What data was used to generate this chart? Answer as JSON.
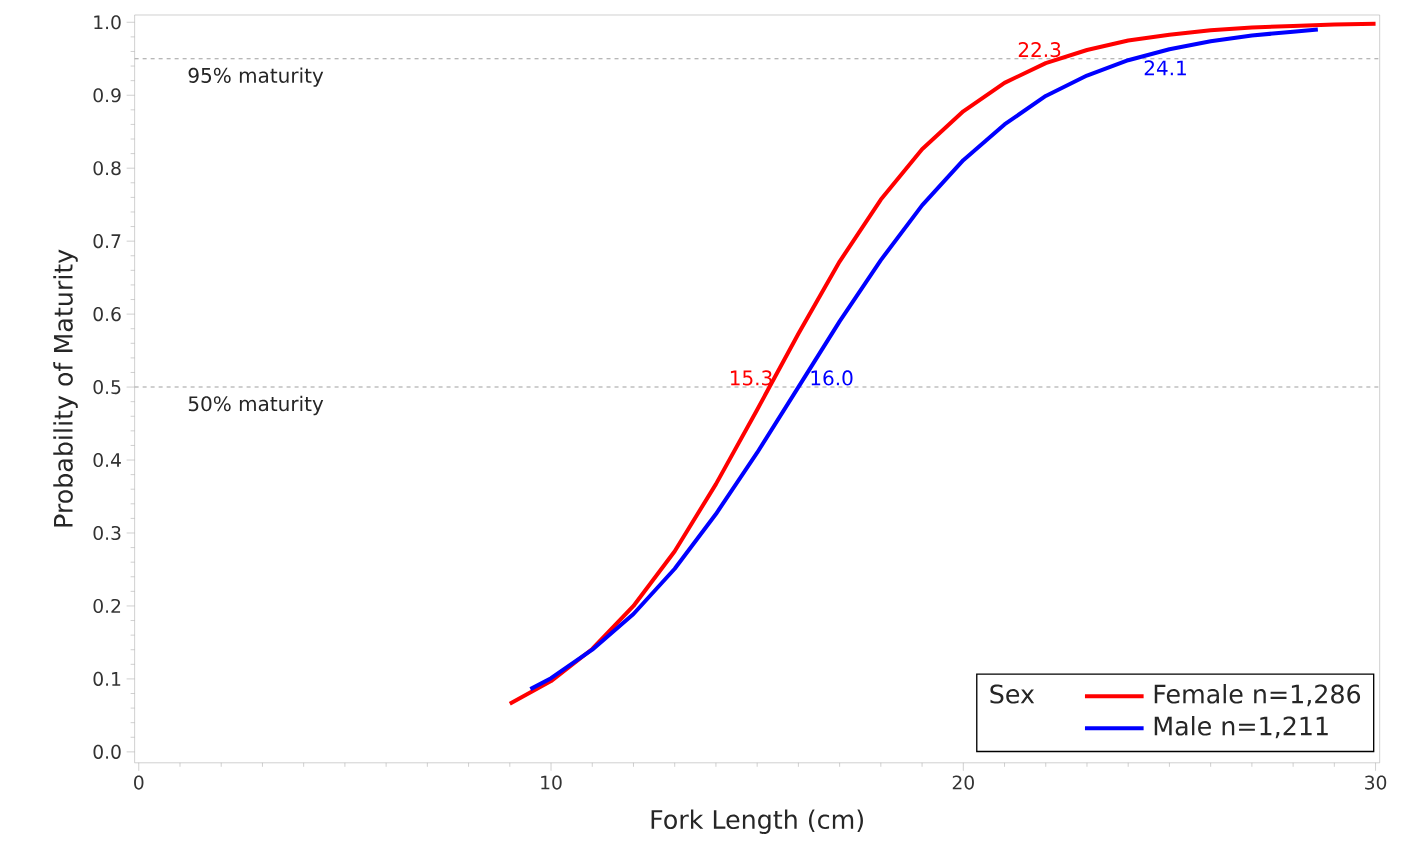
{
  "chart_data": {
    "type": "line",
    "xlabel": "Fork Length (cm)",
    "ylabel": "Probability of Maturity",
    "legend_title": "Sex",
    "series": [
      {
        "name": "Female n=1,286",
        "color": "#ff0000",
        "x": [
          9,
          10,
          11,
          12,
          13,
          14,
          15,
          16,
          17,
          18,
          19,
          20,
          21,
          22,
          23,
          24,
          25,
          26,
          27,
          28,
          29,
          30
        ],
        "values": [
          0.066,
          0.097,
          0.141,
          0.2,
          0.275,
          0.367,
          0.469,
          0.573,
          0.672,
          0.757,
          0.826,
          0.878,
          0.917,
          0.944,
          0.962,
          0.975,
          0.983,
          0.989,
          0.993,
          0.995,
          0.997,
          0.998
        ]
      },
      {
        "name": "Male n=1,211",
        "color": "#0000ff",
        "x": [
          9.5,
          10,
          11,
          12,
          13,
          14,
          15,
          16,
          17,
          18,
          19,
          20,
          21,
          22,
          23,
          24,
          25,
          26,
          27,
          28,
          28.6
        ],
        "values": [
          0.086,
          0.101,
          0.14,
          0.189,
          0.251,
          0.326,
          0.41,
          0.5,
          0.59,
          0.674,
          0.749,
          0.811,
          0.86,
          0.899,
          0.927,
          0.948,
          0.963,
          0.974,
          0.982,
          0.987,
          0.99
        ]
      }
    ],
    "xlim": [
      -0.1,
      30.1
    ],
    "ylim": [
      -0.015,
      1.01
    ],
    "xticks": [
      0,
      10,
      20,
      30
    ],
    "yticks": [
      {
        "value": 0,
        "label": "0.0"
      },
      0.1,
      0.2,
      0.3,
      0.4,
      0.5,
      0.6,
      0.7,
      0.8,
      0.9,
      {
        "value": 1,
        "label": "1.0"
      }
    ],
    "ref_lines": [
      {
        "axis": "y",
        "value": 0.5,
        "label": "50% maturity",
        "color": "#a0a0a0",
        "line_style": "dashed"
      },
      {
        "axis": "y",
        "value": 0.95,
        "label": "95% maturity",
        "color": "#a0a0a0",
        "line_style": "dashed"
      }
    ],
    "annotations": [
      {
        "text": "15.3",
        "x": 15.3,
        "y": 0.5
      },
      {
        "text": "16.0",
        "x": 16.0,
        "y": 0.5
      },
      {
        "text": "22.3",
        "x": 22.3,
        "y": 0.95
      },
      {
        "text": "24.1",
        "x": 24.1,
        "y": 0.95
      }
    ],
    "legend": "bottom right",
    "grid": false,
    "marker": "none",
    "line_style": "solid"
  }
}
